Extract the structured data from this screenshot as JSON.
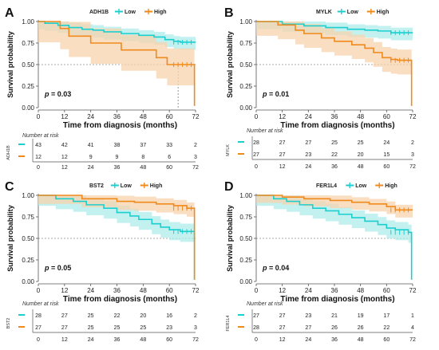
{
  "colors": {
    "low": "#1ccfcf",
    "high": "#f08a1c",
    "low_band": "#aeeceb",
    "high_band": "#f8d3ad"
  },
  "axis": {
    "ylabel": "Survival probability",
    "xlabel": "Time from diagnosis (months)",
    "yticks": [
      "0.00",
      "0.25",
      "0.50",
      "0.75",
      "1.00"
    ],
    "xticks": [
      "0",
      "12",
      "24",
      "36",
      "48",
      "60",
      "72"
    ],
    "risk_title": "Number at risk"
  },
  "chart_data": [
    {
      "panel": "A",
      "gene": "ADH1B",
      "type": "line",
      "xlim": [
        0,
        72
      ],
      "ylim": [
        0,
        1
      ],
      "legend": [
        "Low",
        "High"
      ],
      "p_label": "p",
      "p_value": "= 0.03",
      "median_x": 64,
      "series": [
        {
          "name": "Low",
          "ci": 0.08,
          "steps": [
            [
              0,
              1
            ],
            [
              3,
              0.98
            ],
            [
              9,
              0.955
            ],
            [
              14,
              0.93
            ],
            [
              20,
              0.91
            ],
            [
              25,
              0.9
            ],
            [
              30,
              0.88
            ],
            [
              38,
              0.86
            ],
            [
              46,
              0.84
            ],
            [
              53,
              0.82
            ],
            [
              58,
              0.79
            ],
            [
              62,
              0.77
            ],
            [
              65,
              0.76
            ],
            [
              72,
              0.76
            ]
          ]
        },
        {
          "name": "High",
          "ci": 0.22,
          "steps": [
            [
              0,
              1
            ],
            [
              10,
              0.92
            ],
            [
              14,
              0.83
            ],
            [
              24,
              0.75
            ],
            [
              38,
              0.67
            ],
            [
              54,
              0.58
            ],
            [
              59,
              0.5
            ],
            [
              71,
              0.5
            ],
            [
              71.5,
              0.02
            ]
          ]
        }
      ],
      "risk": {
        "Low": [
          "43",
          "42",
          "41",
          "38",
          "37",
          "33",
          "2"
        ],
        "High": [
          "12",
          "12",
          "9",
          "9",
          "8",
          "6",
          "3"
        ]
      }
    },
    {
      "panel": "B",
      "gene": "MYLK",
      "type": "line",
      "xlim": [
        0,
        72
      ],
      "ylim": [
        0,
        1
      ],
      "legend": [
        "Low",
        "High"
      ],
      "p_label": "p",
      "p_value": "= 0.01",
      "series": [
        {
          "name": "Low",
          "ci": 0.08,
          "steps": [
            [
              0,
              1
            ],
            [
              12,
              0.97
            ],
            [
              22,
              0.95
            ],
            [
              32,
              0.93
            ],
            [
              42,
              0.91
            ],
            [
              50,
              0.9
            ],
            [
              56,
              0.89
            ],
            [
              62,
              0.87
            ],
            [
              72,
              0.87
            ]
          ]
        },
        {
          "name": "High",
          "ci": 0.15,
          "steps": [
            [
              0,
              1
            ],
            [
              10,
              0.96
            ],
            [
              18,
              0.9
            ],
            [
              22,
              0.86
            ],
            [
              30,
              0.81
            ],
            [
              36,
              0.77
            ],
            [
              44,
              0.73
            ],
            [
              50,
              0.69
            ],
            [
              54,
              0.64
            ],
            [
              58,
              0.58
            ],
            [
              62,
              0.56
            ],
            [
              65,
              0.55
            ],
            [
              71,
              0.55
            ],
            [
              71.5,
              0.02
            ]
          ]
        }
      ],
      "risk": {
        "Low": [
          "28",
          "27",
          "27",
          "25",
          "25",
          "24",
          "2"
        ],
        "High": [
          "27",
          "27",
          "23",
          "22",
          "20",
          "15",
          "3"
        ]
      }
    },
    {
      "panel": "C",
      "gene": "BST2",
      "type": "line",
      "xlim": [
        0,
        72
      ],
      "ylim": [
        0,
        1
      ],
      "legend": [
        "Low",
        "High"
      ],
      "p_label": "p",
      "p_value": "= 0.05",
      "series": [
        {
          "name": "Low",
          "ci": 0.11,
          "steps": [
            [
              0,
              1
            ],
            [
              8,
              0.96
            ],
            [
              16,
              0.93
            ],
            [
              22,
              0.89
            ],
            [
              30,
              0.85
            ],
            [
              36,
              0.8
            ],
            [
              42,
              0.76
            ],
            [
              46,
              0.72
            ],
            [
              52,
              0.67
            ],
            [
              56,
              0.63
            ],
            [
              60,
              0.6
            ],
            [
              65,
              0.58
            ],
            [
              71,
              0.58
            ],
            [
              71.5,
              0.02
            ]
          ]
        },
        {
          "name": "High",
          "ci": 0.09,
          "steps": [
            [
              0,
              1
            ],
            [
              20,
              0.96
            ],
            [
              36,
              0.93
            ],
            [
              44,
              0.92
            ],
            [
              54,
              0.9
            ],
            [
              62,
              0.88
            ],
            [
              68,
              0.85
            ],
            [
              71,
              0.85
            ],
            [
              71.5,
              0.02
            ]
          ]
        }
      ],
      "risk": {
        "Low": [
          "28",
          "27",
          "25",
          "22",
          "20",
          "16",
          "2"
        ],
        "High": [
          "27",
          "27",
          "25",
          "25",
          "25",
          "23",
          "3"
        ]
      }
    },
    {
      "panel": "D",
      "gene": "FER1L4",
      "type": "line",
      "xlim": [
        0,
        72
      ],
      "ylim": [
        0,
        1
      ],
      "legend": [
        "Low",
        "High"
      ],
      "p_label": "p",
      "p_value": "= 0.04",
      "series": [
        {
          "name": "Low",
          "ci": 0.11,
          "steps": [
            [
              0,
              1
            ],
            [
              8,
              0.96
            ],
            [
              14,
              0.93
            ],
            [
              20,
              0.89
            ],
            [
              26,
              0.85
            ],
            [
              32,
              0.82
            ],
            [
              38,
              0.78
            ],
            [
              44,
              0.74
            ],
            [
              50,
              0.7
            ],
            [
              56,
              0.66
            ],
            [
              60,
              0.62
            ],
            [
              64,
              0.6
            ],
            [
              70,
              0.57
            ],
            [
              71,
              0.57
            ],
            [
              71.5,
              0.02
            ]
          ]
        },
        {
          "name": "High",
          "ci": 0.08,
          "steps": [
            [
              0,
              1
            ],
            [
              12,
              0.98
            ],
            [
              22,
              0.96
            ],
            [
              34,
              0.94
            ],
            [
              44,
              0.92
            ],
            [
              52,
              0.9
            ],
            [
              60,
              0.87
            ],
            [
              64,
              0.83
            ],
            [
              72,
              0.83
            ]
          ]
        }
      ],
      "risk": {
        "Low": [
          "27",
          "27",
          "23",
          "21",
          "19",
          "17",
          "1"
        ],
        "High": [
          "28",
          "27",
          "27",
          "26",
          "26",
          "22",
          "4"
        ]
      }
    }
  ]
}
